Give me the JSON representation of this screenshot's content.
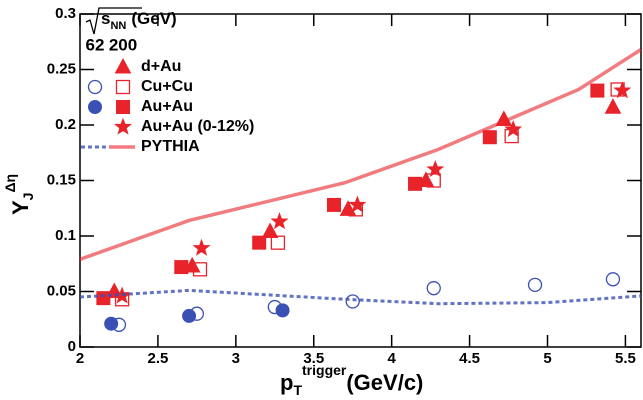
{
  "chart_data": {
    "type": "scatter",
    "xlabel": {
      "main": "p",
      "sub": "T",
      "sup": "trigger",
      "unit": "(GeV/c)"
    },
    "ylabel": {
      "main": "Y",
      "sub": "J",
      "sup": "Δη"
    },
    "legend_title": {
      "main": "s",
      "sub": "NN",
      "unit": "(GeV)"
    },
    "legend_columns": [
      "62",
      "200"
    ],
    "energy_colors": [
      "#3b50b5",
      "#e8232a"
    ],
    "xlim": [
      2,
      5.6
    ],
    "ylim": [
      0,
      0.3
    ],
    "xticks": [
      2,
      2.5,
      3,
      3.5,
      4,
      4.5,
      5,
      5.5
    ],
    "yticks": [
      0,
      0.05,
      0.1,
      0.15,
      0.2,
      0.25,
      0.3
    ],
    "series": [
      {
        "name": "d+Au",
        "by_energy": [
          null,
          {
            "marker": "triangle",
            "filled": true,
            "x": [
              2.22,
              2.72,
              3.22,
              3.72,
              4.22,
              4.72,
              5.42
            ],
            "y": [
              0.05,
              0.073,
              0.104,
              0.124,
              0.15,
              0.205,
              0.216
            ]
          }
        ]
      },
      {
        "name": "Cu+Cu",
        "by_energy": [
          {
            "marker": "circle",
            "filled": false,
            "x": [
              2.25,
              2.75,
              3.25,
              3.75,
              4.27,
              4.92,
              5.42
            ],
            "y": [
              0.02,
              0.03,
              0.036,
              0.041,
              0.053,
              0.056,
              0.061
            ]
          },
          {
            "marker": "square",
            "filled": false,
            "x": [
              2.27,
              2.77,
              3.27,
              3.77,
              4.27,
              4.77,
              5.45
            ],
            "y": [
              0.043,
              0.07,
              0.094,
              0.124,
              0.15,
              0.19,
              0.232
            ]
          }
        ]
      },
      {
        "name": "Au+Au",
        "by_energy": [
          {
            "marker": "circle",
            "filled": true,
            "x": [
              2.2,
              2.7,
              3.3
            ],
            "y": [
              0.021,
              0.028,
              0.033
            ]
          },
          {
            "marker": "square",
            "filled": true,
            "x": [
              2.15,
              2.65,
              3.15,
              3.63,
              4.15,
              4.63,
              5.32
            ],
            "y": [
              0.044,
              0.072,
              0.094,
              0.128,
              0.147,
              0.189,
              0.231
            ]
          }
        ]
      },
      {
        "name": "Au+Au (0-12%)",
        "by_energy": [
          null,
          {
            "marker": "star",
            "filled": true,
            "x": [
              2.27,
              2.78,
              3.28,
              3.78,
              4.28,
              4.78,
              5.48
            ],
            "y": [
              0.046,
              0.089,
              0.113,
              0.128,
              0.16,
              0.196,
              0.231
            ]
          }
        ]
      },
      {
        "name": "PYTHIA",
        "by_energy": [
          {
            "marker": "line",
            "dash": "4 3",
            "x": [
              2,
              2.7,
              3.7,
              4.3,
              5,
              5.6
            ],
            "y": [
              0.045,
              0.051,
              0.043,
              0.039,
              0.04,
              0.046
            ]
          },
          {
            "marker": "line",
            "dash": "none",
            "x": [
              2,
              2.7,
              3.7,
              4.3,
              5.2,
              5.6
            ],
            "y": [
              0.079,
              0.114,
              0.148,
              0.178,
              0.232,
              0.268
            ]
          }
        ]
      }
    ]
  }
}
